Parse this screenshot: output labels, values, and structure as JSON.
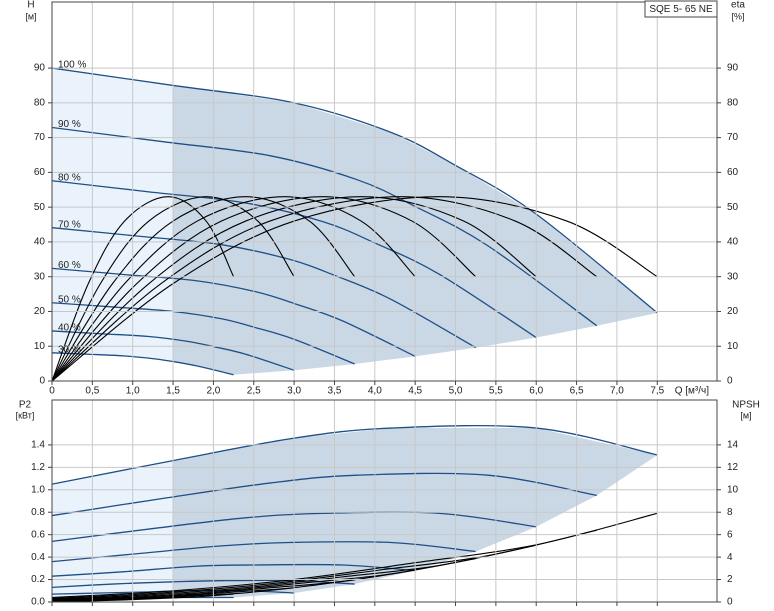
{
  "badge": "SQE 5- 65 NE",
  "chart_data": [
    {
      "type": "line",
      "y_label": "H",
      "y_unit": "[м]",
      "y2_label": "eta",
      "y2_unit": "[%]",
      "x_label": "Q [м³/ч]",
      "xlim": [
        0,
        8.24
      ],
      "ylim": [
        0,
        109
      ],
      "y2lim": [
        0,
        109
      ],
      "xticks": [
        0,
        {
          "value": 0.5,
          "label": "0,5"
        },
        {
          "value": 1,
          "label": "1,0"
        },
        {
          "value": 1.5,
          "label": "1,5"
        },
        {
          "value": 2,
          "label": "2,0"
        },
        {
          "value": 2.5,
          "label": "2,5"
        },
        {
          "value": 3,
          "label": "3,0"
        },
        {
          "value": 3.5,
          "label": "3,5"
        },
        {
          "value": 4,
          "label": "4,0"
        },
        {
          "value": 4.5,
          "label": "4,5"
        },
        {
          "value": 5,
          "label": "5,0"
        },
        {
          "value": 5.5,
          "label": "5,5"
        },
        {
          "value": 6,
          "label": "6,0"
        },
        {
          "value": 6.5,
          "label": "6,5"
        },
        {
          "value": 7,
          "label": "7,0"
        },
        {
          "value": 7.5,
          "label": "7,5"
        }
      ],
      "yticks": [
        0,
        10,
        20,
        30,
        40,
        50,
        60,
        70,
        80,
        90
      ],
      "y2ticks": [
        0,
        10,
        20,
        30,
        40,
        50,
        60,
        70,
        80,
        90
      ],
      "grid": true,
      "fill_color": "#eaf3fc",
      "fill_color_operating": "#cad8e6",
      "series": [
        {
          "name": "100 %",
          "color": "#1f4f86",
          "x": [
            0,
            1.5,
            3,
            4.2,
            5,
            6,
            7.5
          ],
          "values": [
            90,
            85,
            80,
            71.5,
            62,
            48,
            19.6
          ]
        },
        {
          "name": "90 %",
          "color": "#1f4f86",
          "x": [
            0,
            1.35,
            2.7,
            3.78,
            4.5,
            5.4,
            6.75
          ],
          "values": [
            72.9,
            68.9,
            64.8,
            57.9,
            50.2,
            38.9,
            15.9
          ]
        },
        {
          "name": "80 %",
          "color": "#1f4f86",
          "x": [
            0,
            1.2,
            2.4,
            3.36,
            4,
            4.8,
            6
          ],
          "values": [
            57.6,
            54.4,
            51.2,
            45.8,
            39.7,
            30.7,
            12.5
          ]
        },
        {
          "name": "70 %",
          "color": "#1f4f86",
          "x": [
            0,
            1.05,
            2.1,
            2.94,
            3.5,
            4.2,
            5.25
          ],
          "values": [
            44.1,
            41.7,
            39.2,
            35,
            30.4,
            23.5,
            9.6
          ]
        },
        {
          "name": "60 %",
          "color": "#1f4f86",
          "x": [
            0,
            0.9,
            1.8,
            2.52,
            3,
            3.6,
            4.5
          ],
          "values": [
            32.4,
            30.6,
            28.8,
            25.7,
            22.3,
            17.3,
            7.1
          ]
        },
        {
          "name": "50 %",
          "color": "#1f4f86",
          "x": [
            0,
            0.75,
            1.5,
            2.1,
            2.5,
            3,
            3.75
          ],
          "values": [
            22.5,
            21.3,
            20,
            17.9,
            15.5,
            12,
            4.9
          ]
        },
        {
          "name": "40 %",
          "color": "#1f4f86",
          "x": [
            0,
            0.6,
            1.2,
            1.68,
            2,
            2.4,
            3
          ],
          "values": [
            14.4,
            13.6,
            12.8,
            11.4,
            9.9,
            7.7,
            3.1
          ]
        },
        {
          "name": "30 %",
          "color": "#1f4f86",
          "x": [
            0,
            0.45,
            0.9,
            1.26,
            1.5,
            1.8,
            2.25
          ],
          "values": [
            8.1,
            7.7,
            7.2,
            6.4,
            5.6,
            4.3,
            1.8
          ]
        },
        {
          "color": "#000000",
          "axis": "y2",
          "x": [
            0,
            1.5,
            3,
            4.8,
            6.38,
            7.5
          ],
          "values": [
            0,
            28,
            46,
            53,
            46,
            30
          ]
        },
        {
          "color": "#000000",
          "axis": "y2",
          "x": [
            0,
            1.35,
            2.7,
            4.32,
            5.74,
            6.75
          ],
          "values": [
            0,
            28,
            46,
            53,
            46,
            30
          ]
        },
        {
          "color": "#000000",
          "axis": "y2",
          "x": [
            0,
            1.2,
            2.4,
            3.84,
            5.1,
            6
          ],
          "values": [
            0,
            28,
            46,
            53,
            46,
            30
          ]
        },
        {
          "color": "#000000",
          "axis": "y2",
          "x": [
            0,
            1.05,
            2.1,
            3.36,
            4.46,
            5.25
          ],
          "values": [
            0,
            28,
            46,
            53,
            46,
            30
          ]
        },
        {
          "color": "#000000",
          "axis": "y2",
          "x": [
            0,
            0.9,
            1.8,
            2.88,
            3.83,
            4.5
          ],
          "values": [
            0,
            28,
            46,
            53,
            46,
            30
          ]
        },
        {
          "color": "#000000",
          "axis": "y2",
          "x": [
            0,
            0.75,
            1.5,
            2.4,
            3.19,
            3.75
          ],
          "values": [
            0,
            28,
            46,
            53,
            46,
            30
          ]
        },
        {
          "color": "#000000",
          "axis": "y2",
          "x": [
            0,
            0.6,
            1.2,
            1.92,
            2.55,
            3
          ],
          "values": [
            0,
            28,
            46,
            53,
            46,
            30
          ]
        },
        {
          "color": "#000000",
          "axis": "y2",
          "x": [
            0,
            0.45,
            0.9,
            1.44,
            1.91,
            2.25
          ],
          "values": [
            0,
            28,
            46,
            53,
            46,
            30
          ]
        }
      ]
    },
    {
      "type": "line",
      "y_label": "P2",
      "y_unit": "[кВт]",
      "y2_label": "NPSH",
      "y2_unit": "[м]",
      "xlim": [
        0,
        8.24
      ],
      "ylim": [
        0,
        1.8
      ],
      "y2lim": [
        0,
        18
      ],
      "yticks": [
        {
          "value": 0,
          "label": "0.0"
        },
        0.2,
        0.4,
        0.6,
        0.8,
        {
          "value": 1,
          "label": "1.0"
        },
        1.2,
        1.4
      ],
      "y2ticks": [
        0,
        2,
        4,
        6,
        8,
        10,
        12,
        14
      ],
      "grid": true,
      "fill_color": "#eaf3fc",
      "fill_color_operating": "#cad8e6",
      "series": [
        {
          "color": "#1f4f86",
          "x": [
            0,
            1.5,
            3,
            4.2,
            6,
            7.5
          ],
          "values": [
            1.05,
            1.26,
            1.46,
            1.55,
            1.55,
            1.31
          ]
        },
        {
          "color": "#1f4f86",
          "x": [
            0,
            1.35,
            2.7,
            3.78,
            5.4,
            6.75
          ],
          "values": [
            0.77,
            0.92,
            1.06,
            1.13,
            1.13,
            0.95
          ]
        },
        {
          "color": "#1f4f86",
          "x": [
            0,
            1.2,
            2.4,
            3.36,
            4.8,
            6
          ],
          "values": [
            0.54,
            0.65,
            0.75,
            0.79,
            0.79,
            0.67
          ]
        },
        {
          "color": "#1f4f86",
          "x": [
            0,
            1.05,
            2.1,
            2.94,
            4.2,
            5.25
          ],
          "values": [
            0.36,
            0.43,
            0.5,
            0.53,
            0.53,
            0.45
          ]
        },
        {
          "color": "#1f4f86",
          "x": [
            0,
            0.9,
            1.8,
            2.52,
            3.6,
            4.5
          ],
          "values": [
            0.23,
            0.27,
            0.32,
            0.33,
            0.33,
            0.28
          ]
        },
        {
          "color": "#1f4f86",
          "x": [
            0,
            0.75,
            1.5,
            2.1,
            3,
            3.75
          ],
          "values": [
            0.13,
            0.16,
            0.18,
            0.19,
            0.19,
            0.16
          ]
        },
        {
          "color": "#1f4f86",
          "x": [
            0,
            0.6,
            1.2,
            1.68,
            2.4,
            3
          ],
          "values": [
            0.07,
            0.08,
            0.09,
            0.1,
            0.1,
            0.08
          ]
        },
        {
          "color": "#1f4f86",
          "x": [
            0,
            0.45,
            0.9,
            1.26,
            1.8,
            2.25
          ],
          "values": [
            0.03,
            0.03,
            0.04,
            0.04,
            0.04,
            0.04
          ]
        },
        {
          "color": "#000000",
          "axis": "y2",
          "x": [
            0,
            1.5,
            3,
            4.5,
            6,
            7.5
          ],
          "values": [
            0.4,
            1,
            2,
            3.5,
            5.1,
            7.9
          ]
        },
        {
          "color": "#000000",
          "axis": "y2",
          "x": [
            0,
            1.35,
            2.7,
            4.05,
            5.4,
            6.75
          ],
          "values": [
            0.32,
            0.81,
            1.62,
            2.84,
            4.13,
            6.4
          ]
        },
        {
          "color": "#000000",
          "axis": "y2",
          "x": [
            0,
            1.2,
            2.4,
            3.6,
            4.8,
            6
          ],
          "values": [
            0.26,
            0.64,
            1.28,
            2.24,
            3.26,
            5.06
          ]
        },
        {
          "color": "#000000",
          "axis": "y2",
          "x": [
            0,
            1.05,
            2.1,
            3.15,
            4.2,
            5.25
          ],
          "values": [
            0.2,
            0.49,
            0.98,
            1.72,
            2.5,
            3.87
          ]
        },
        {
          "color": "#000000",
          "axis": "y2",
          "x": [
            0,
            0.9,
            1.8,
            2.7,
            3.6,
            4.5
          ],
          "values": [
            0.14,
            0.36,
            0.72,
            1.26,
            1.84,
            2.84
          ]
        },
        {
          "color": "#000000",
          "axis": "y2",
          "x": [
            0,
            0.75,
            1.5,
            2.25,
            3,
            3.75
          ],
          "values": [
            0.1,
            0.25,
            0.5,
            0.88,
            1.28,
            1.98
          ]
        },
        {
          "color": "#000000",
          "axis": "y2",
          "x": [
            0,
            0.6,
            1.2,
            1.8,
            2.4,
            3
          ],
          "values": [
            0.06,
            0.16,
            0.32,
            0.56,
            0.82,
            1.26
          ]
        },
        {
          "color": "#000000",
          "axis": "y2",
          "x": [
            0,
            0.45,
            0.9,
            1.35,
            1.8,
            2.25
          ],
          "values": [
            0.04,
            0.09,
            0.18,
            0.32,
            0.46,
            0.71
          ]
        }
      ]
    }
  ]
}
